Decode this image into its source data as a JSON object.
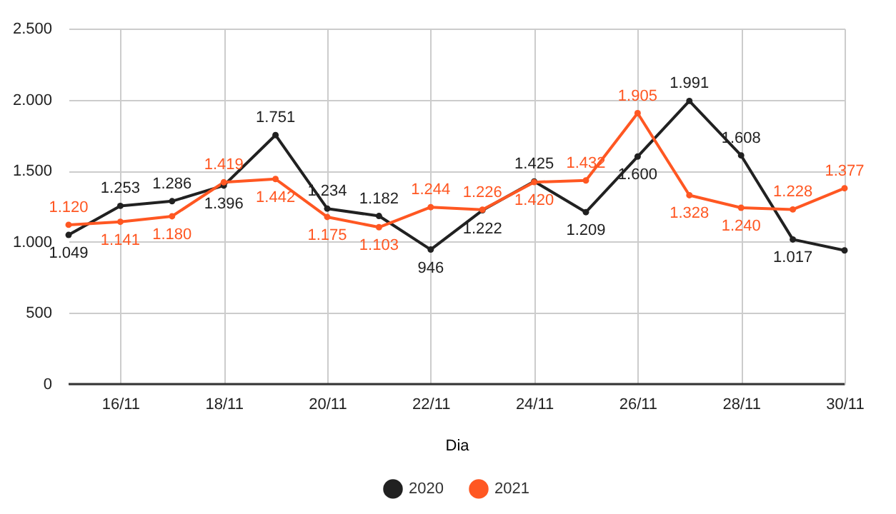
{
  "chart_data": {
    "type": "line",
    "xlabel": "Dia",
    "categories": [
      null,
      "16/11",
      null,
      "18/11",
      null,
      "20/11",
      null,
      "22/11",
      null,
      "24/11",
      null,
      "26/11",
      null,
      "28/11",
      null,
      "30/11"
    ],
    "series": [
      {
        "name": "2020",
        "color": "#212121",
        "values": [
          1049,
          1253,
          1286,
          1396,
          1751,
          1234,
          1182,
          946,
          1222,
          1425,
          1209,
          1600,
          1991,
          1608,
          1017,
          940
        ],
        "value_labels": [
          "1.049",
          "1.253",
          "1.286",
          "1.396",
          "1.751",
          "1.234",
          "1.182",
          "946",
          "1.222",
          "1.425",
          "1.209",
          "1.600",
          "1.991",
          "1.608",
          "1.017",
          null
        ]
      },
      {
        "name": "2021",
        "color": "#ff5722",
        "values": [
          1120,
          1141,
          1180,
          1419,
          1442,
          1175,
          1103,
          1244,
          1226,
          1420,
          1432,
          1905,
          1328,
          1240,
          1228,
          1377
        ],
        "value_labels": [
          "1.120",
          "1.141",
          "1.180",
          "1.419",
          "1.442",
          "1.175",
          "1.103",
          "1.244",
          "1.226",
          "1.420",
          "1.432",
          "1.905",
          "1.328",
          "1.240",
          "1.228",
          "1.377"
        ]
      }
    ],
    "ylim": [
      0,
      2500
    ],
    "yticks": [
      0,
      500,
      {
        "value": 1000,
        "label": "1.000"
      },
      {
        "value": 1500,
        "label": "1.500"
      },
      {
        "value": 2000,
        "label": "2.000"
      },
      {
        "value": 2500,
        "label": "2.500"
      }
    ],
    "grid": true,
    "legend": "bottom",
    "marker": "circle",
    "line_style": "solid"
  }
}
